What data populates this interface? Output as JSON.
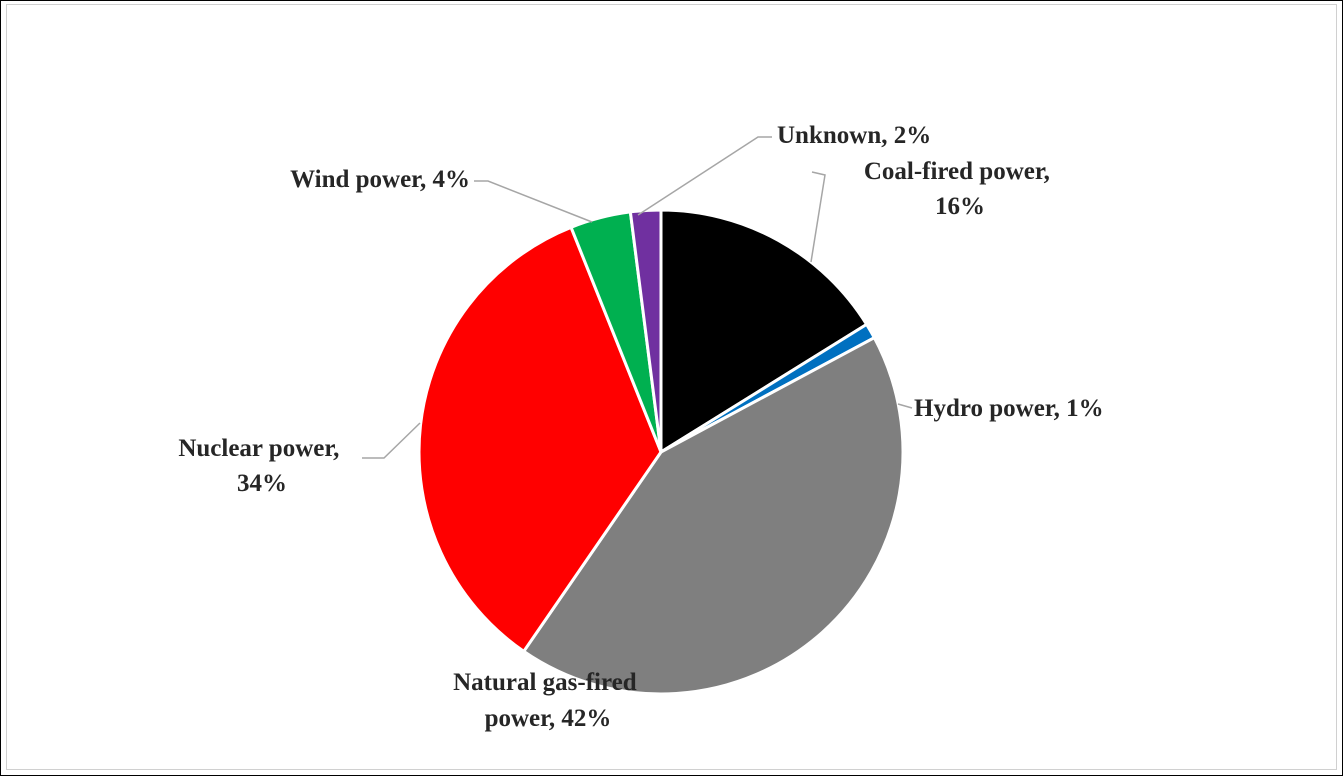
{
  "chart_data": {
    "type": "pie",
    "title": "",
    "slices": [
      {
        "label": "Coal-fired power",
        "value": 16,
        "display": "Coal-fired power, 16%",
        "color": "#000000"
      },
      {
        "label": "Hydro power",
        "value": 1,
        "display": "Hydro power, 1%",
        "color": "#0070c0"
      },
      {
        "label": "Natural gas-fired power",
        "value": 42,
        "display": "Natural gas-fired power, 42%",
        "color": "#7f7f7f"
      },
      {
        "label": "Nuclear power",
        "value": 34,
        "display": "Nuclear power, 34%",
        "color": "#ff0000"
      },
      {
        "label": "Wind power",
        "value": 4,
        "display": "Wind power, 4%",
        "color": "#00b050"
      },
      {
        "label": "Unknown",
        "value": 2,
        "display": "Unknown, 2%",
        "color": "#7030a0"
      }
    ],
    "start_angle": "12 o'clock",
    "direction": "clockwise",
    "slice_border_color": "#ffffff",
    "label_color": "#262626",
    "leader_line_color": "#a6a6a6"
  }
}
